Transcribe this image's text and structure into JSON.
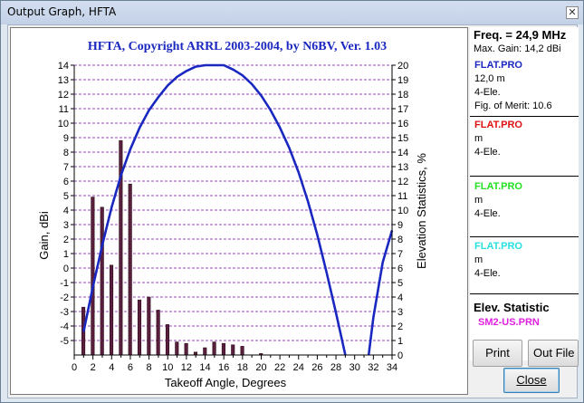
{
  "window": {
    "title": "Output Graph, HFTA",
    "close_glyph": "✕"
  },
  "chart_data": {
    "type": "line",
    "title": "HFTA, Copyright ARRL 2003-2004, by N6BV, Ver. 1.03",
    "xlabel": "Takeoff Angle, Degrees",
    "ylabel": "Gain, dBi",
    "y2label": "Elevation Statistics, %",
    "xlim": [
      0,
      34
    ],
    "ylim": [
      -6,
      14
    ],
    "y2lim": [
      0,
      20
    ],
    "x_ticks": [
      0,
      2,
      4,
      6,
      8,
      10,
      12,
      14,
      16,
      18,
      20,
      22,
      24,
      26,
      28,
      30,
      32,
      34
    ],
    "y_ticks": [
      -5,
      -4,
      -3,
      -2,
      -1,
      0,
      1,
      2,
      3,
      4,
      5,
      6,
      7,
      8,
      9,
      10,
      11,
      12,
      13,
      14
    ],
    "y2_ticks": [
      0,
      1,
      2,
      3,
      4,
      5,
      6,
      7,
      8,
      9,
      10,
      11,
      12,
      13,
      14,
      15,
      16,
      17,
      18,
      19,
      20
    ],
    "grid": true,
    "series": [
      {
        "name": "FLAT.PRO",
        "axis": "gain",
        "color": "#1a28c0",
        "x": [
          1,
          2,
          3,
          4,
          5,
          6,
          7,
          8,
          9,
          10,
          11,
          12,
          13,
          14,
          15,
          16,
          17,
          18,
          19,
          20,
          21,
          22,
          23,
          24,
          25,
          26,
          27,
          28,
          29,
          31.5,
          32,
          33,
          34
        ],
        "y": [
          -4.4,
          -1.3,
          1.6,
          4.2,
          6.4,
          8.2,
          9.7,
          10.9,
          11.8,
          12.6,
          13.2,
          13.6,
          13.9,
          14.1,
          14.1,
          14.0,
          13.7,
          13.3,
          12.7,
          11.9,
          10.9,
          9.7,
          8.3,
          6.6,
          4.6,
          2.3,
          -0.3,
          -3.1,
          -6.0,
          -6.0,
          -3.4,
          0.4,
          2.6
        ]
      },
      {
        "name": "SM2-US.PRN",
        "axis": "elevation",
        "color": "#5a1f3c",
        "type": "bar",
        "x": [
          1,
          2,
          3,
          4,
          5,
          6,
          7,
          8,
          9,
          10,
          11,
          12,
          13,
          14,
          15,
          16,
          17,
          18,
          20
        ],
        "values": [
          3.3,
          10.9,
          10.2,
          6.2,
          14.8,
          11.8,
          3.8,
          4.0,
          3.1,
          2.1,
          0.9,
          0.8,
          0.2,
          0.5,
          0.9,
          0.8,
          0.7,
          0.6,
          0.1
        ]
      }
    ]
  },
  "panel": {
    "freq": "Freq. = 24,9 MHz",
    "max_gain": "Max. Gain: 14,2 dBi",
    "antennas": [
      {
        "name": "FLAT.PRO",
        "color": "#1a28c0",
        "line1": "12,0 m",
        "line2": "4-Ele.",
        "line3": "Fig. of Merit:  10.6"
      },
      {
        "name": "FLAT.PRO",
        "color": "#e01010",
        "line1": " m",
        "line2": "4-Ele.",
        "line3": ""
      },
      {
        "name": "FLAT.PRO",
        "color": "#22e022",
        "line1": " m",
        "line2": "4-Ele.",
        "line3": ""
      },
      {
        "name": "FLAT.PRO",
        "color": "#28e0e0",
        "line1": " m",
        "line2": "4-Ele.",
        "line3": ""
      }
    ],
    "elev_title": "Elev. Statistic",
    "elev_file": "SM2-US.PRN"
  },
  "buttons": {
    "print": "Print",
    "out_file": "Out File",
    "close": "Close"
  }
}
